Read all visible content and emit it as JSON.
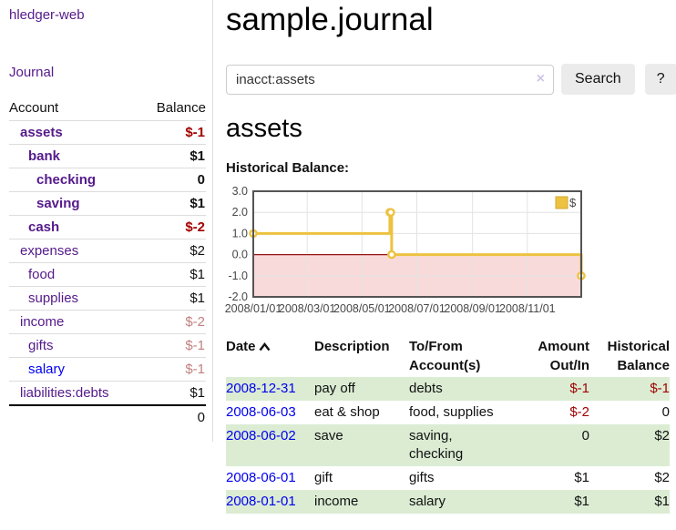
{
  "app": {
    "brand": "hledger-web",
    "nav_journal": "Journal"
  },
  "sidebar": {
    "table": {
      "account_header": "Account",
      "balance_header": "Balance",
      "rows": [
        {
          "name": "assets",
          "balance": "$-1",
          "indent": 1,
          "bold": true,
          "neg": "strong"
        },
        {
          "name": "bank",
          "balance": "$1",
          "indent": 2,
          "bold": true,
          "neg": "none"
        },
        {
          "name": "checking",
          "balance": "0",
          "indent": 3,
          "bold": true,
          "neg": "none"
        },
        {
          "name": "saving",
          "balance": "$1",
          "indent": 3,
          "bold": true,
          "neg": "none"
        },
        {
          "name": "cash",
          "balance": "$-2",
          "indent": 2,
          "bold": true,
          "neg": "strong"
        },
        {
          "name": "expenses",
          "balance": "$2",
          "indent": 1,
          "bold": false,
          "neg": "none"
        },
        {
          "name": "food",
          "balance": "$1",
          "indent": 2,
          "bold": false,
          "neg": "none"
        },
        {
          "name": "supplies",
          "balance": "$1",
          "indent": 2,
          "bold": false,
          "neg": "none"
        },
        {
          "name": "income",
          "balance": "$-2",
          "indent": 1,
          "bold": false,
          "neg": "faded"
        },
        {
          "name": "gifts",
          "balance": "$-1",
          "indent": 2,
          "bold": false,
          "neg": "faded"
        },
        {
          "name": "salary",
          "balance": "$-1",
          "indent": 2,
          "bold": false,
          "neg": "faded",
          "link_color": "blue"
        },
        {
          "name": "liabilities:debts",
          "balance": "$1",
          "indent": 1,
          "bold": false,
          "neg": "none"
        }
      ],
      "total": "0"
    }
  },
  "header": {
    "title": "sample.journal"
  },
  "search": {
    "value": "inacct:assets",
    "clear_icon": "×",
    "button_label": "Search",
    "help_label": "?"
  },
  "account_page": {
    "title": "assets",
    "chart_label": "Historical Balance:"
  },
  "chart_data": {
    "type": "line",
    "step": true,
    "title": "Historical Balance",
    "series": [
      {
        "name": "$",
        "color": "#edc240",
        "points": [
          [
            "2008-01-01",
            1
          ],
          [
            "2008-06-01",
            2
          ],
          [
            "2008-06-02",
            2
          ],
          [
            "2008-06-03",
            0
          ],
          [
            "2008-12-31",
            -1
          ]
        ]
      }
    ],
    "xlim": [
      "2008-01-01",
      "2008-12-31"
    ],
    "ylim": [
      -2,
      3
    ],
    "y_ticks": [
      3.0,
      2.0,
      1.0,
      0.0,
      -1.0,
      -2.0
    ],
    "y_tick_labels": [
      "3.0",
      "2.0",
      "1.0",
      "0.0",
      "-1.0",
      "-2.0"
    ],
    "x_tick_dates": [
      "2008-01-01",
      "2008-03-01",
      "2008-05-01",
      "2008-07-01",
      "2008-09-01",
      "2008-11-01"
    ],
    "x_ticks": [
      "2008/01/01",
      "2008/03/01",
      "2008/05/01",
      "2008/07/01",
      "2008/09/01",
      "2008/11/01"
    ],
    "grid": true,
    "negative_region_color": "#f9dada",
    "zero_line_color": "#991414",
    "border_color": "#545454",
    "legend": {
      "label": "$",
      "position": "top-right"
    }
  },
  "register": {
    "headers": [
      "Date",
      "Description",
      "To/From Account(s)",
      "Amount Out/In",
      "Historical Balance"
    ],
    "sort_icon": "chevron-up",
    "rows": [
      {
        "date": "2008-12-31",
        "description": "pay off",
        "accounts": "debts",
        "amount": "$-1",
        "amount_neg": true,
        "balance": "$-1",
        "balance_neg": true
      },
      {
        "date": "2008-06-03",
        "description": "eat & shop",
        "accounts": "food, supplies",
        "amount": "$-2",
        "amount_neg": true,
        "balance": "0",
        "balance_neg": false
      },
      {
        "date": "2008-06-02",
        "description": "save",
        "accounts": "saving, checking",
        "amount": "0",
        "amount_neg": false,
        "balance": "$2",
        "balance_neg": false
      },
      {
        "date": "2008-06-01",
        "description": "gift",
        "accounts": "gifts",
        "amount": "$1",
        "amount_neg": false,
        "balance": "$2",
        "balance_neg": false
      },
      {
        "date": "2008-01-01",
        "description": "income",
        "accounts": "salary",
        "amount": "$1",
        "amount_neg": false,
        "balance": "$1",
        "balance_neg": false
      }
    ]
  }
}
